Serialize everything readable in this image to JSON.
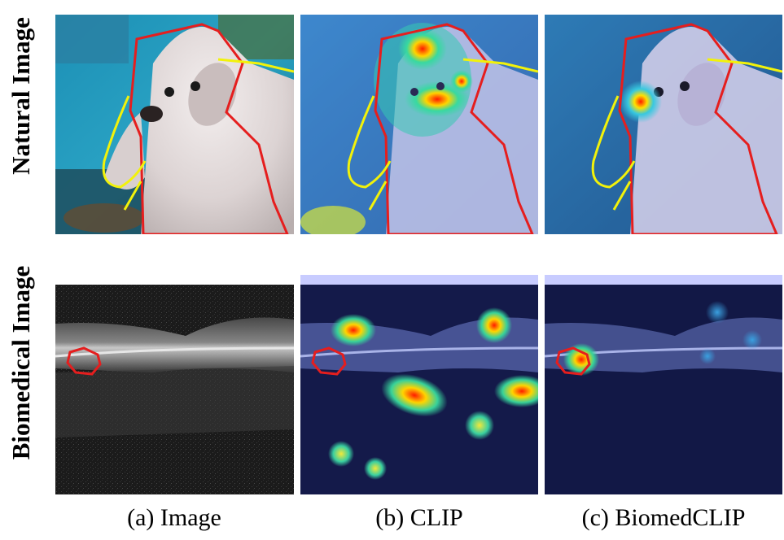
{
  "row_labels": {
    "natural": "Natural Image",
    "biomedical": "Biomedical Image"
  },
  "captions": {
    "image": "(a) Image",
    "clip": "(b) CLIP",
    "biomedclip": "(c) BiomedCLIP"
  },
  "colors": {
    "outline_primary": "#e51e1e",
    "outline_secondary": "#f2f20a",
    "heat_peak": "#ff1a00",
    "heat_low": "#1f2fd0"
  }
}
